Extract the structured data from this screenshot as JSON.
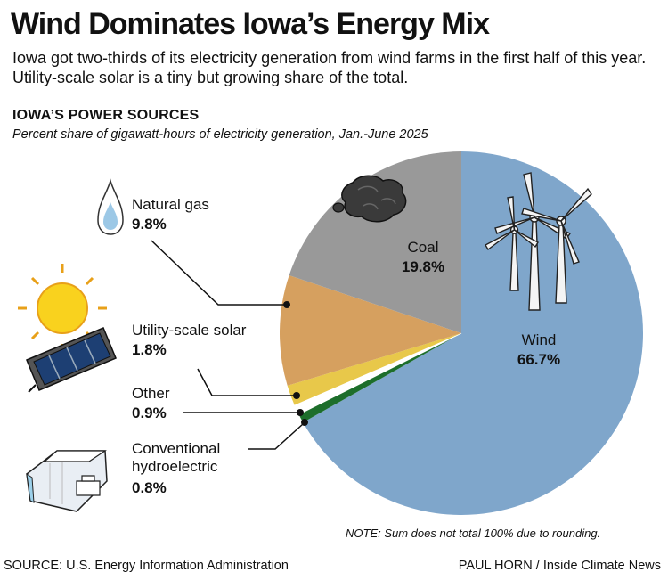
{
  "header": {
    "title": "Wind Dominates Iowa’s Energy Mix",
    "subtitle": "Iowa got two-thirds of its electricity generation from wind farms in the first half of this year. Utility-scale solar is a tiny but growing share of the total."
  },
  "chart_data": {
    "type": "pie",
    "title": "IOWA’S POWER SOURCES",
    "subtitle": "Percent share of gigawatt-hours of electricity generation, Jan.-June 2025",
    "slices": [
      {
        "name": "Wind",
        "value": 66.7,
        "label": "66.7%",
        "color": "#7fa6cb",
        "icon": "wind-turbines-icon"
      },
      {
        "name": "Conventional hydroelectric",
        "value": 0.8,
        "label": "0.8%",
        "color": "#1d6e2b",
        "icon": "dam-icon"
      },
      {
        "name": "Other",
        "value": 0.9,
        "label": "0.9%",
        "color": "#ffffff",
        "icon": ""
      },
      {
        "name": "Utility-scale solar",
        "value": 1.8,
        "label": "1.8%",
        "color": "#e8c84a",
        "icon": "solar-panel-icon"
      },
      {
        "name": "Natural gas",
        "value": 9.8,
        "label": "9.8%",
        "color": "#d6a05f",
        "icon": "gas-flame-icon"
      },
      {
        "name": "Coal",
        "value": 19.8,
        "label": "19.8%",
        "color": "#999999",
        "icon": "coal-icon"
      }
    ],
    "note": "NOTE: Sum does not total 100% due to rounding."
  },
  "footer": {
    "source": "SOURCE: U.S. Energy Information Administration",
    "credit": "PAUL HORN / Inside Climate News"
  }
}
